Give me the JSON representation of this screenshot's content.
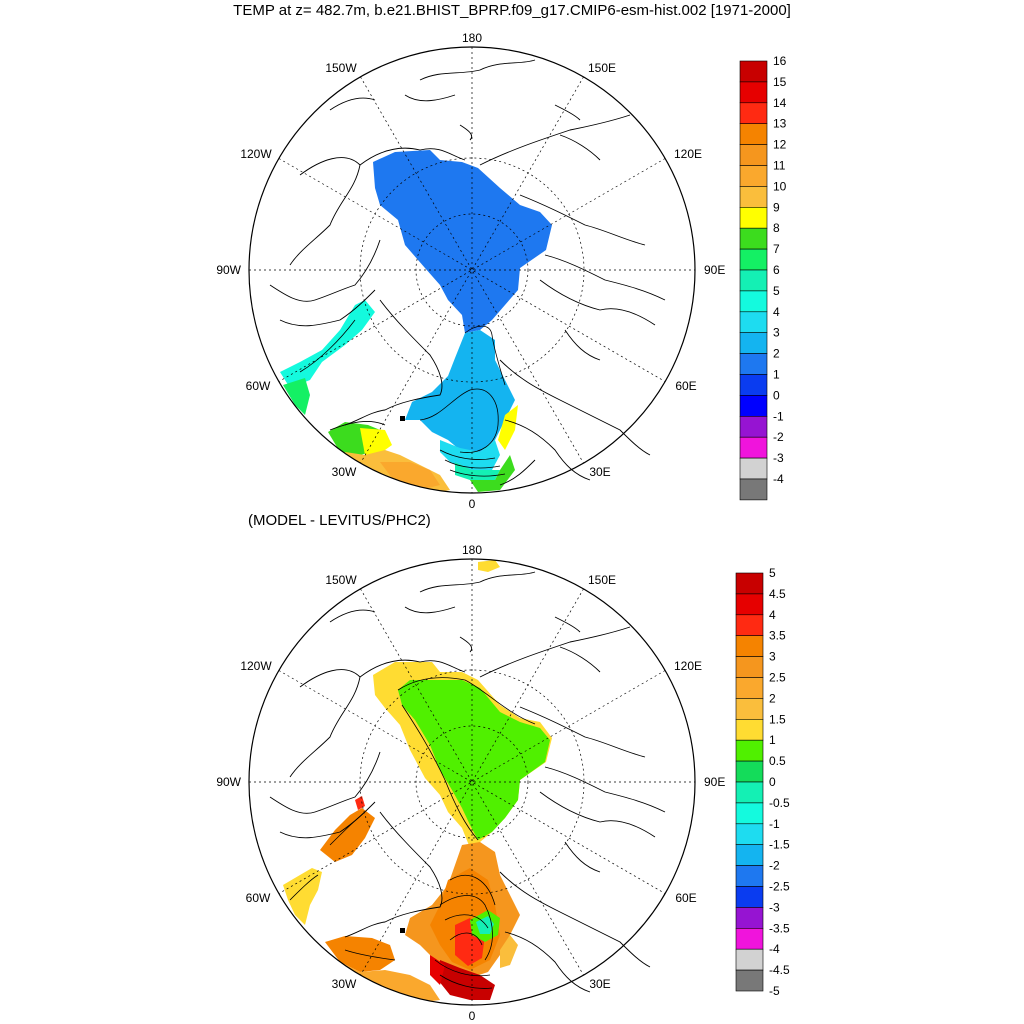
{
  "title": "TEMP at z= 482.7m, b.e21.BHIST_BPRP.f09_g17.CMIP6-esm-hist.002 [1971-2000]",
  "subtitle": "(MODEL - LEVITUS/PHC2)",
  "map_labels": {
    "lon_180": "180",
    "lon_150W": "150W",
    "lon_150E": "150E",
    "lon_120W": "120W",
    "lon_120E": "120E",
    "lon_90W": "90W",
    "lon_90E": "90E",
    "lon_60W": "60W",
    "lon_60E": "60E",
    "lon_30W": "30W",
    "lon_30E": "30E",
    "lon_0": "0"
  },
  "top_colorbar": {
    "labels": [
      "16",
      "15",
      "14",
      "13",
      "12",
      "11",
      "10",
      "9",
      "8",
      "7",
      "6",
      "5",
      "4",
      "3",
      "2",
      "1",
      "0",
      "-1",
      "-2",
      "-3",
      "-4"
    ],
    "colors": [
      "#c80000",
      "#e60000",
      "#ff2a12",
      "#f58300",
      "#f5961e",
      "#faa82d",
      "#fabe3c",
      "#ffff00",
      "#3cdc1e",
      "#14f064",
      "#14f0b4",
      "#14fade",
      "#1edcf0",
      "#14b4f0",
      "#1e78f0",
      "#0a3cf0",
      "#0000ff",
      "#9614d2",
      "#f014dc",
      "#d2d2d2",
      "#787878"
    ]
  },
  "bottom_colorbar": {
    "labels": [
      "5",
      "4.5",
      "4",
      "3.5",
      "3",
      "2.5",
      "2",
      "1.5",
      "1",
      "0.5",
      "0",
      "-0.5",
      "-1",
      "-1.5",
      "-2",
      "-2.5",
      "-3",
      "-3.5",
      "-4",
      "-4.5",
      "-5"
    ],
    "colors": [
      "#c80000",
      "#e60000",
      "#ff2a12",
      "#f58300",
      "#f5961e",
      "#faa82d",
      "#fabe3c",
      "#ffdc32",
      "#50f000",
      "#14dc5a",
      "#14f0b4",
      "#14fade",
      "#1edcf0",
      "#14b4f0",
      "#1e78f0",
      "#0a3cf0",
      "#9614d2",
      "#f014dc",
      "#d2d2d2",
      "#787878"
    ]
  }
}
